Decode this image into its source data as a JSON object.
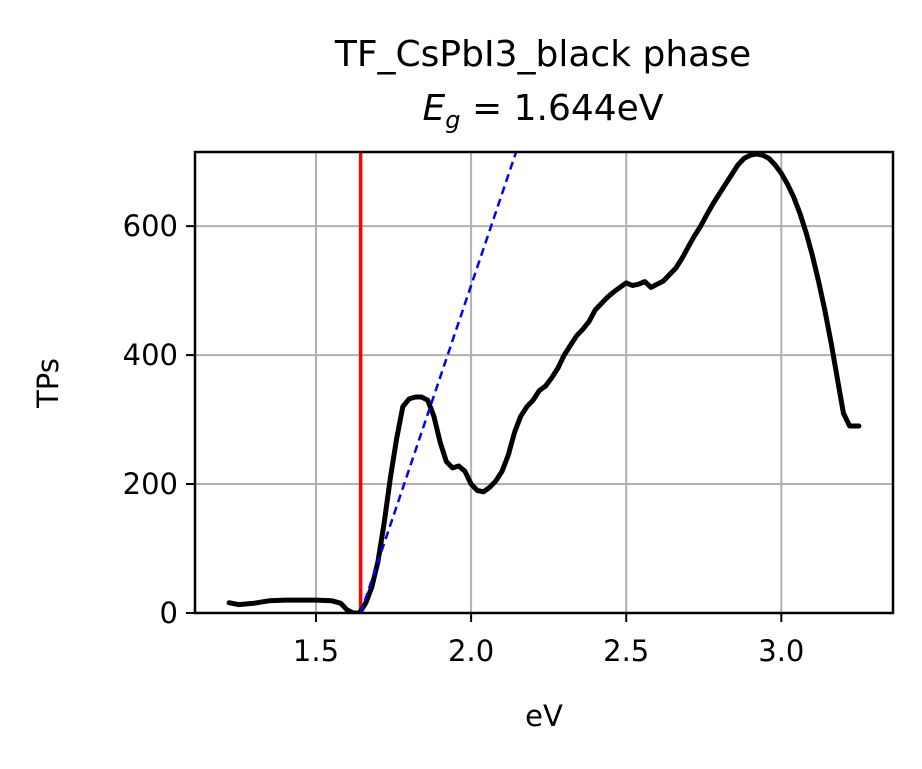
{
  "chart_data": {
    "type": "line",
    "title": "TF_CsPbI3_black phase",
    "subtitle": {
      "symbol": "E",
      "subscript": "g",
      "equals": " = ",
      "value": "1.644",
      "unit": "eV"
    },
    "xlabel": "eV",
    "ylabel": "TPs",
    "xlim": [
      1.11,
      3.36
    ],
    "ylim": [
      0,
      715
    ],
    "xticks": [
      1.5,
      2.0,
      2.5,
      3.0
    ],
    "xtick_labels": [
      "1.5",
      "2.0",
      "2.5",
      "3.0"
    ],
    "yticks": [
      0,
      200,
      400,
      600
    ],
    "ytick_labels": [
      "0",
      "200",
      "400",
      "600"
    ],
    "grid": true,
    "colors": {
      "spectrum": "#000000",
      "bandgap_line": "#ff0000",
      "tangent_line": "#0000ff",
      "grid": "#b0b0b0"
    },
    "series": [
      {
        "name": "spectrum",
        "style": "solid",
        "x": [
          1.22,
          1.25,
          1.3,
          1.35,
          1.4,
          1.45,
          1.5,
          1.55,
          1.58,
          1.6,
          1.62,
          1.64,
          1.66,
          1.68,
          1.7,
          1.72,
          1.74,
          1.76,
          1.78,
          1.8,
          1.82,
          1.84,
          1.86,
          1.88,
          1.9,
          1.92,
          1.94,
          1.96,
          1.98,
          2.0,
          2.02,
          2.04,
          2.06,
          2.08,
          2.1,
          2.12,
          2.14,
          2.16,
          2.18,
          2.2,
          2.22,
          2.24,
          2.26,
          2.28,
          2.3,
          2.32,
          2.34,
          2.36,
          2.38,
          2.4,
          2.42,
          2.44,
          2.46,
          2.48,
          2.5,
          2.52,
          2.54,
          2.56,
          2.58,
          2.6,
          2.62,
          2.64,
          2.66,
          2.68,
          2.7,
          2.72,
          2.74,
          2.76,
          2.78,
          2.8,
          2.82,
          2.84,
          2.86,
          2.88,
          2.9,
          2.92,
          2.94,
          2.96,
          2.98,
          3.0,
          3.02,
          3.04,
          3.06,
          3.08,
          3.1,
          3.12,
          3.14,
          3.16,
          3.18,
          3.2,
          3.22,
          3.25
        ],
        "y": [
          16,
          13,
          15,
          19,
          20,
          20,
          20,
          19,
          15,
          5,
          0,
          0,
          15,
          40,
          80,
          140,
          210,
          270,
          320,
          332,
          335,
          335,
          330,
          305,
          265,
          235,
          225,
          228,
          220,
          200,
          190,
          188,
          195,
          205,
          220,
          245,
          280,
          305,
          320,
          330,
          345,
          352,
          365,
          380,
          400,
          415,
          430,
          440,
          452,
          470,
          480,
          490,
          498,
          505,
          512,
          508,
          510,
          514,
          505,
          510,
          515,
          525,
          535,
          550,
          568,
          585,
          600,
          618,
          635,
          650,
          665,
          680,
          695,
          705,
          710,
          712,
          710,
          705,
          695,
          682,
          665,
          645,
          620,
          590,
          555,
          515,
          470,
          420,
          365,
          310,
          290,
          290
        ]
      },
      {
        "name": "tangent",
        "style": "dashed",
        "x": [
          1.644,
          2.145
        ],
        "y": [
          0,
          715
        ]
      }
    ],
    "vlines": [
      {
        "name": "bandgap",
        "x": 1.644,
        "label": "1.644"
      }
    ]
  }
}
